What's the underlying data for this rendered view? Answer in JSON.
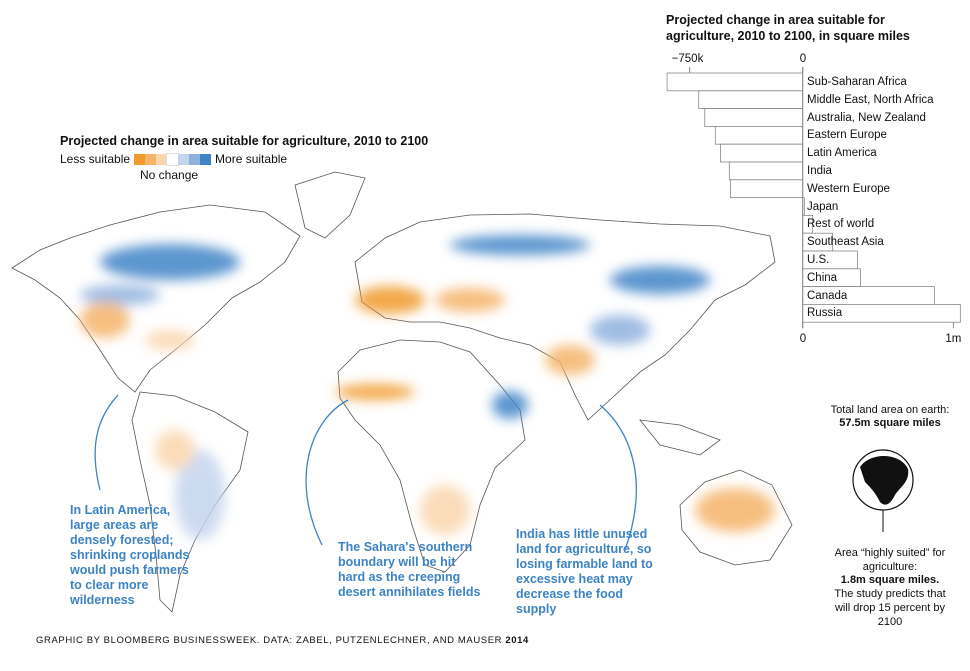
{
  "map": {
    "legend": {
      "title": "Projected change in area suitable for agriculture, 2010 to 2100",
      "less_label": "Less suitable",
      "more_label": "More suitable",
      "no_change_label": "No change",
      "colors": [
        "#f19a2c",
        "#f5b46a",
        "#fad6ad",
        "#ffffff",
        "#c4d4ee",
        "#8eb1de",
        "#3f84c7"
      ]
    },
    "annotations": [
      {
        "text": "In Latin America, large areas are densely forested; shrinking croplands would push farmers to clear more wilderness"
      },
      {
        "text": "The Sahara's southern boundary will be hit hard as the creeping desert annihilates fields"
      },
      {
        "text": "India has little unused land for agriculture, so losing farmable land to excessive heat may decrease the food supply"
      }
    ]
  },
  "chart_data": {
    "type": "bar",
    "orientation": "horizontal",
    "title": "Projected change in area suitable for agriculture, 2010 to 2100, in square miles",
    "categories": [
      "Sub-Saharan Africa",
      "Middle East, North Africa",
      "Australia, New Zealand",
      "Eastern Europe",
      "Latin America",
      "India",
      "Western Europe",
      "Japan",
      "Rest of world",
      "Southeast Asia",
      "U.S.",
      "China",
      "Canada",
      "Russia"
    ],
    "values": [
      -900000,
      -690000,
      -650000,
      -580000,
      -546000,
      -487000,
      -480000,
      11000,
      66000,
      199000,
      363000,
      383000,
      874000,
      1046000
    ],
    "xlim": [
      -900000,
      1050000
    ],
    "top_ticks": [
      "−750k",
      "0"
    ],
    "bottom_ticks": [
      "0",
      "1m"
    ],
    "top_tick_values": [
      -750000,
      0
    ],
    "bottom_tick_values": [
      0,
      1000000
    ]
  },
  "sidebar": {
    "total_label": "Total land area on earth:",
    "total_value": "57.5m square miles",
    "suited_label": "Area “highly suited” for agriculture:",
    "suited_value": "1.8m square miles.",
    "suited_note": "The study predicts that will drop 15 percent by 2100"
  },
  "footer": {
    "credit": "GRAPHIC BY BLOOMBERG BUSINESSWEEK. DATA: ZABEL, PUTZENLECHNER, AND MAUSER",
    "year": "2014"
  }
}
